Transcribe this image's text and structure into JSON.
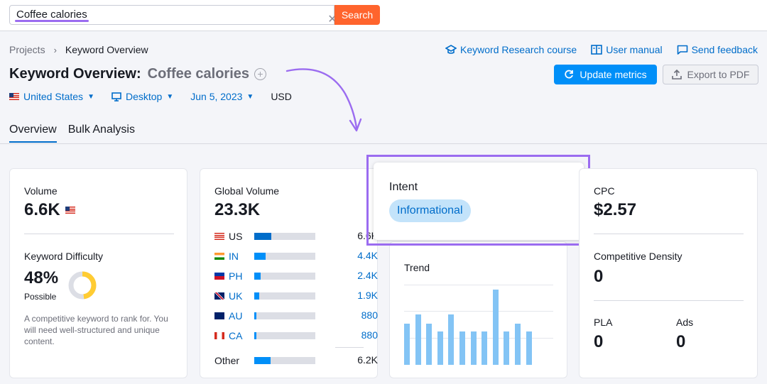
{
  "search": {
    "value": "Coffee calories",
    "button": "Search",
    "clear_icon": "close-icon"
  },
  "breadcrumb": {
    "root": "Projects",
    "current": "Keyword Overview"
  },
  "links": [
    {
      "label": "Keyword Research course",
      "icon": "graduation-cap-icon"
    },
    {
      "label": "User manual",
      "icon": "book-icon"
    },
    {
      "label": "Send feedback",
      "icon": "chat-icon"
    }
  ],
  "title": {
    "prefix": "Keyword Overview:",
    "keyword": "Coffee calories",
    "add_icon": "plus-circle-icon"
  },
  "actions": {
    "update": "Update metrics",
    "export": "Export to PDF"
  },
  "filters": {
    "country": "United States",
    "device": "Desktop",
    "date": "Jun 5, 2023",
    "currency": "USD"
  },
  "tabs": [
    "Overview",
    "Bulk Analysis"
  ],
  "volume": {
    "label": "Volume",
    "value": "6.6K"
  },
  "kd": {
    "label": "Keyword Difficulty",
    "value": "48%",
    "level": "Possible",
    "percent": 48,
    "desc": "A competitive keyword to rank for. You will need well-structured and unique content."
  },
  "global": {
    "label": "Global Volume",
    "value": "23.3K",
    "rows": [
      {
        "code": "US",
        "value": "6.6K",
        "share": 0.28
      },
      {
        "code": "IN",
        "value": "4.4K",
        "share": 0.19
      },
      {
        "code": "PH",
        "value": "2.4K",
        "share": 0.1
      },
      {
        "code": "UK",
        "value": "1.9K",
        "share": 0.08
      },
      {
        "code": "AU",
        "value": "880",
        "share": 0.04
      },
      {
        "code": "CA",
        "value": "880",
        "share": 0.04
      }
    ],
    "other": {
      "label": "Other",
      "value": "6.2K",
      "share": 0.27
    }
  },
  "intent": {
    "label": "Intent",
    "value": "Informational"
  },
  "trend": {
    "label": "Trend",
    "values": [
      0.55,
      0.67,
      0.55,
      0.44,
      0.67,
      0.44,
      0.44,
      0.44,
      1.0,
      0.44,
      0.55,
      0.44
    ]
  },
  "cpc": {
    "label": "CPC",
    "value": "$2.57"
  },
  "density": {
    "label": "Competitive Density",
    "value": "0"
  },
  "pla": {
    "label": "PLA",
    "value": "0"
  },
  "ads": {
    "label": "Ads",
    "value": "0"
  },
  "colors": {
    "accent": "#008ff8",
    "link": "#006dca",
    "search": "#ff642d",
    "highlight": "#9b6cf0",
    "kd": "#ffcc33"
  }
}
